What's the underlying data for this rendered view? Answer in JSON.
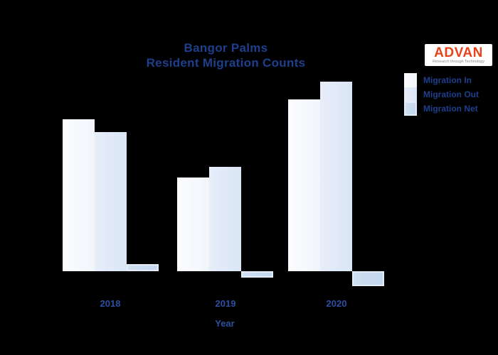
{
  "page": {
    "background": "#000000"
  },
  "title": {
    "line1": "Bangor Palms",
    "line2": "Resident Migration Counts",
    "color": "#1e3f8c"
  },
  "logo": {
    "text": "ADVAN",
    "tagline": "Research through Technology",
    "text_color": "#e5431c",
    "bg": "#ffffff"
  },
  "legend": {
    "text_color": "#1e3f8c",
    "items": [
      {
        "label": "Migration In",
        "color": "#f1f5fb",
        "color_light": "#fbfcfe"
      },
      {
        "label": "Migration Out",
        "color": "#d9e5f6",
        "color_light": "#e7eef9"
      },
      {
        "label": "Migration Net",
        "color": "#c3d7ef",
        "color_light": "#cfdff3",
        "border": "#e4ecf8"
      }
    ]
  },
  "x_axis": {
    "title": "Year",
    "labels": [
      "2018",
      "2019",
      "2020"
    ],
    "text_color": "#2d4fa1"
  },
  "chart_data": {
    "type": "bar",
    "title": "Bangor Palms — Resident Migration Counts",
    "xlabel": "Year",
    "ylabel": "",
    "categories": [
      "2018",
      "2019",
      "2020"
    ],
    "series": [
      {
        "name": "Migration In",
        "values": [
          214,
          132,
          242
        ],
        "color": "#f1f5fb",
        "color_light": "#fbfcfe"
      },
      {
        "name": "Migration Out",
        "values": [
          196,
          147,
          267
        ],
        "color": "#d9e5f6",
        "color_light": "#e7eef9"
      },
      {
        "name": "Migration Net",
        "values": [
          10,
          -9,
          -21
        ],
        "color": "#c3d7ef",
        "color_light": "#cfdff3",
        "border": "#e4ecf8"
      }
    ],
    "value_units": "relative units (no y-axis ticks or gridlines shown; values estimated from bar heights)",
    "baseline_value": 0,
    "grid": false,
    "y_axis_visible": false,
    "legend_position": "upper-right-outside"
  }
}
